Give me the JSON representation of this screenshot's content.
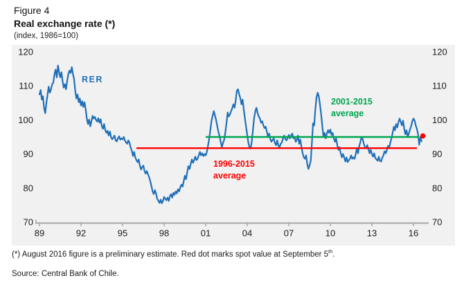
{
  "header": {
    "figure_label": "Figure 4",
    "title": "Real exchange rate (*)",
    "subtitle": "(index, 1986=100)"
  },
  "footnote": {
    "before_sup": "(*) August 2016 figure is a preliminary estimate. Red dot marks spot value at September 5",
    "sup": "th",
    "after_sup": "."
  },
  "source": "Source: Central Bank of Chile.",
  "colors": {
    "line_blue": "#1F6FB8",
    "avg_green": "#00A54F",
    "avg_red": "#FF0000",
    "chart_background": "#F1F1F1",
    "axis_gray": "#A6A6A6",
    "tick_text": "#1a1a1a"
  },
  "chart_data": {
    "type": "line",
    "title": "Real exchange rate (*)",
    "unit_label": "(index, 1986=100)",
    "series_label": "RER",
    "ylim": [
      70,
      120
    ],
    "yticks": [
      120,
      110,
      100,
      90,
      80,
      70
    ],
    "y_axis_sides": [
      "left",
      "right"
    ],
    "grid": false,
    "xtick_labels": [
      "89",
      "92",
      "95",
      "98",
      "01",
      "04",
      "07",
      "10",
      "13",
      "16"
    ],
    "xtick_years": [
      1989,
      1992,
      1995,
      1998,
      2001,
      2004,
      2007,
      2010,
      2013,
      2016
    ],
    "x_start_year": 1989,
    "x_frequency": "monthly",
    "x_last_point": "2016-08 (preliminary)",
    "values": [
      107.5,
      108.8,
      106.0,
      107.0,
      103.5,
      102.0,
      105.0,
      107.5,
      109.8,
      108.0,
      109.0,
      110.5,
      111.0,
      113.5,
      114.8,
      112.5,
      116.0,
      114.0,
      112.5,
      114.0,
      111.5,
      109.5,
      110.5,
      109.0,
      111.5,
      113.5,
      114.5,
      113.8,
      115.5,
      113.5,
      112.0,
      108.5,
      106.3,
      107.5,
      105.2,
      106.3,
      104.2,
      105.5,
      103.8,
      105.2,
      103.2,
      100.5,
      98.8,
      100.1,
      98.1,
      99.6,
      101.2,
      100.4,
      100.9,
      100.0,
      99.5,
      100.5,
      99.2,
      100.2,
      98.2,
      97.4,
      98.8,
      97.0,
      96.2,
      96.8,
      95.4,
      96.6,
      95.0,
      94.3,
      94.8,
      95.4,
      94.0,
      93.7,
      94.6,
      95.2,
      94.2,
      94.6,
      94.3,
      95.0,
      94.0,
      93.4,
      93.0,
      94.0,
      93.3,
      91.9,
      91.0,
      89.4,
      90.6,
      89.0,
      88.2,
      87.6,
      88.4,
      86.5,
      85.4,
      86.2,
      86.6,
      85.0,
      84.2,
      85.0,
      84.0,
      83.2,
      82.0,
      80.6,
      79.0,
      78.2,
      79.4,
      78.4,
      76.8,
      76.2,
      75.6,
      76.6,
      75.5,
      76.2,
      77.4,
      76.8,
      76.4,
      77.2,
      76.2,
      77.6,
      78.2,
      77.2,
      78.6,
      78.0,
      79.0,
      78.4,
      79.6,
      79.0,
      80.2,
      81.0,
      80.4,
      82.0,
      83.6,
      82.6,
      84.6,
      86.4,
      85.6,
      87.0,
      88.4,
      87.4,
      88.2,
      89.2,
      88.2,
      88.6,
      89.6,
      90.6,
      89.6,
      90.2,
      89.4,
      90.0,
      89.6,
      90.6,
      92.4,
      94.4,
      97.0,
      99.6,
      101.2,
      102.6,
      101.4,
      100.0,
      98.2,
      96.6,
      95.2,
      93.6,
      92.0,
      93.2,
      94.2,
      96.2,
      99.0,
      102.2,
      101.0,
      101.6,
      102.6,
      103.4,
      104.6,
      103.6,
      105.6,
      108.6,
      109.0,
      107.6,
      106.4,
      104.6,
      106.0,
      103.0,
      100.4,
      98.0,
      95.6,
      93.2,
      92.0,
      91.6,
      94.0,
      97.2,
      100.6,
      102.6,
      103.6,
      102.0,
      101.0,
      100.4,
      99.2,
      99.6,
      98.4,
      97.6,
      98.0,
      96.6,
      95.0,
      96.0,
      94.4,
      93.6,
      94.2,
      94.6,
      93.2,
      92.6,
      94.0,
      92.4,
      92.0,
      93.0,
      93.4,
      94.6,
      95.4,
      94.4,
      94.0,
      94.6,
      95.6,
      94.6,
      95.4,
      96.0,
      94.6,
      95.0,
      93.6,
      94.2,
      95.4,
      93.0,
      94.2,
      92.0,
      90.2,
      89.0,
      88.6,
      89.6,
      87.0,
      85.6,
      86.6,
      88.0,
      93.0,
      99.0,
      98.4,
      103.0,
      106.6,
      108.0,
      107.0,
      104.6,
      101.6,
      98.4,
      95.2,
      96.2,
      94.6,
      96.0,
      97.0,
      96.2,
      97.2,
      95.6,
      96.2,
      94.6,
      93.6,
      94.6,
      92.6,
      91.2,
      92.0,
      90.2,
      89.0,
      90.0,
      89.0,
      87.8,
      89.0,
      87.6,
      88.2,
      88.6,
      89.6,
      88.6,
      89.0,
      88.6,
      90.0,
      91.6,
      90.2,
      92.4,
      93.4,
      95.0,
      94.4,
      93.0,
      92.0,
      91.6,
      92.6,
      91.4,
      90.2,
      91.2,
      90.0,
      89.2,
      90.2,
      88.8,
      88.4,
      88.0,
      89.2,
      87.9,
      87.8,
      88.9,
      89.6,
      90.8,
      90.2,
      91.2,
      92.4,
      91.8,
      93.4,
      94.6,
      96.2,
      98.0,
      97.0,
      98.8,
      97.8,
      99.4,
      100.4,
      99.4,
      98.4,
      99.8,
      97.4,
      95.8,
      97.0,
      95.0,
      96.0,
      97.2,
      98.2,
      99.6,
      100.4,
      99.8,
      98.4,
      97.4,
      95.8,
      92.7,
      95.0,
      93.7
    ],
    "reference_lines": [
      {
        "id": "avg-2001-2015",
        "line1": "2001-2015",
        "line2": "average",
        "value": 95.0,
        "x_start": 2001.0,
        "x_end": 2016.4,
        "color": "#00A54F"
      },
      {
        "id": "avg-1996-2015",
        "line1": "1996-2015",
        "line2": "average",
        "value": 91.7,
        "x_start": 1996.0,
        "x_end": 2016.25,
        "color": "#FF0000"
      }
    ],
    "spot_point": {
      "label": "Spot value at September 5",
      "x": 2016.68,
      "value": 95.3,
      "color": "#FF0000"
    }
  }
}
